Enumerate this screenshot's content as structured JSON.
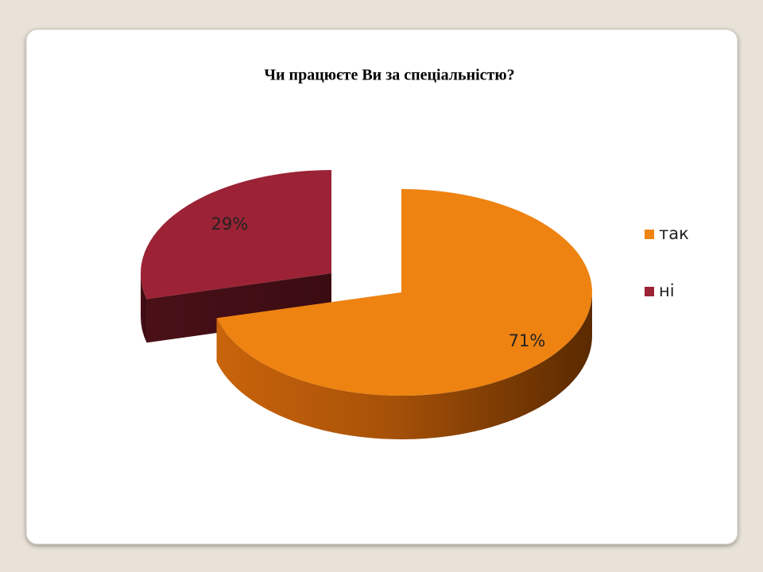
{
  "chart_data": {
    "type": "pie",
    "title": "Чи працюєте Ви за спеціальністю?",
    "categories": [
      "так",
      "ні"
    ],
    "values": [
      71,
      29
    ],
    "value_labels": [
      "71%",
      "29%"
    ],
    "colors": [
      "#ee8311",
      "#9b2335"
    ],
    "legend": "right"
  }
}
